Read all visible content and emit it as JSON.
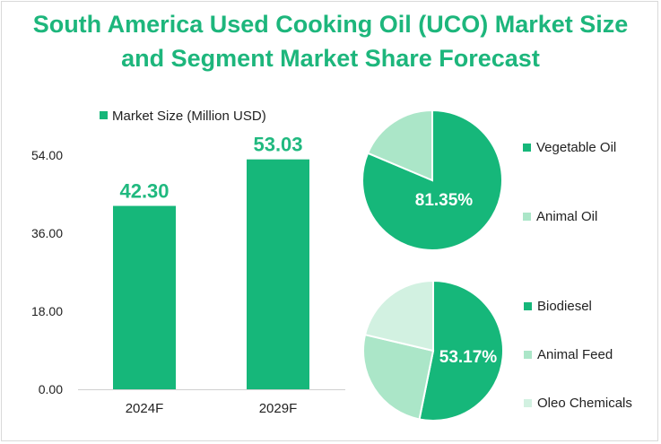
{
  "title": {
    "line1": "South America Used Cooking Oil (UCO) Market Size",
    "line2": "and Segment Market Share Forecast"
  },
  "colors": {
    "title": "#1db67c",
    "bar": "#16b77a",
    "data_label": "#20b97f",
    "axis": "#d0d0d0",
    "pie_border": "#ffffff"
  },
  "chart_data": [
    {
      "type": "bar",
      "legend": "Market Size (Million USD)",
      "categories": [
        "2024F",
        "2029F"
      ],
      "values": [
        42.3,
        53.03
      ],
      "value_labels": [
        "42.30",
        "53.03"
      ],
      "y_ticks": [
        "0.00",
        "18.00",
        "36.00",
        "54.00"
      ],
      "ylim": [
        0,
        54
      ],
      "grid": false,
      "legend_position": "top"
    },
    {
      "type": "pie",
      "slices": [
        {
          "label": "Vegetable Oil",
          "value": 81.35,
          "color": "#16b77a"
        },
        {
          "label": "Animal Oil",
          "value": 18.65,
          "color": "#abe6c8"
        }
      ],
      "data_label": "81.35%",
      "legend_position": "right"
    },
    {
      "type": "pie",
      "slices": [
        {
          "label": "Biodiesel",
          "value": 53.17,
          "color": "#16b77a"
        },
        {
          "label": "Animal Feed",
          "value": 25.5,
          "color": "#abe6c8"
        },
        {
          "label": "Oleo Chemicals",
          "value": 21.33,
          "color": "#d2f1e1"
        }
      ],
      "data_label": "53.17%",
      "legend_position": "right"
    }
  ]
}
